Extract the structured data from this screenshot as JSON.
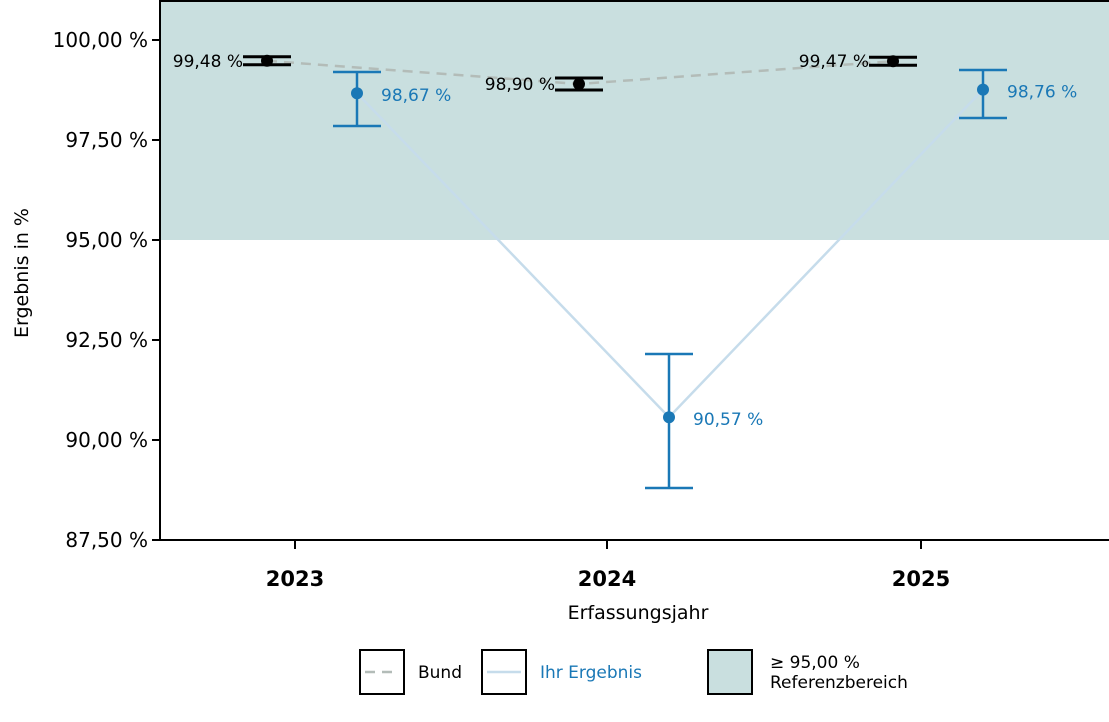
{
  "chart_data": {
    "type": "line",
    "xlabel": "Erfassungsjahr",
    "ylabel": "Ergebnis in %",
    "categories": [
      "2023",
      "2024",
      "2025"
    ],
    "ylim": [
      87.5,
      101.0
    ],
    "yticks": [
      87.5,
      90.0,
      92.5,
      95.0,
      97.5,
      100.0
    ],
    "ytick_labels": [
      "87,50 %",
      "90,00 %",
      "92,50 %",
      "95,00 %",
      "97,50 %",
      "100,00 %"
    ],
    "reference_area": {
      "min": 95.0,
      "label": "≥ 95,00 %",
      "sublabel": "Referenzbereich",
      "color": "#c9dfdf"
    },
    "series": [
      {
        "name": "Bund",
        "color": "#000000",
        "line_color": "#b3bcb8",
        "line_style": "dashed",
        "values": [
          99.48,
          98.9,
          99.47
        ],
        "ci_low": [
          99.38,
          98.75,
          99.37
        ],
        "ci_high": [
          99.58,
          99.05,
          99.57
        ],
        "labels": [
          "99,48 %",
          "98,90 %",
          "99,47 %"
        ]
      },
      {
        "name": "Ihr Ergebnis",
        "color": "#1a78b6",
        "line_color": "#c6dceb",
        "line_style": "solid",
        "values": [
          98.67,
          90.57,
          98.76
        ],
        "ci_low": [
          97.85,
          88.8,
          98.05
        ],
        "ci_high": [
          99.2,
          92.15,
          99.25
        ],
        "labels": [
          "98,67 %",
          "90,57 %",
          "98,76 %"
        ]
      }
    ],
    "legend": {
      "placement": "bottom",
      "items": [
        {
          "key": "bund",
          "label": "Bund"
        },
        {
          "key": "ihr",
          "label": "Ihr Ergebnis"
        },
        {
          "key": "ref",
          "label": "≥ 95,00 %",
          "label2": "Referenzbereich"
        }
      ]
    }
  }
}
